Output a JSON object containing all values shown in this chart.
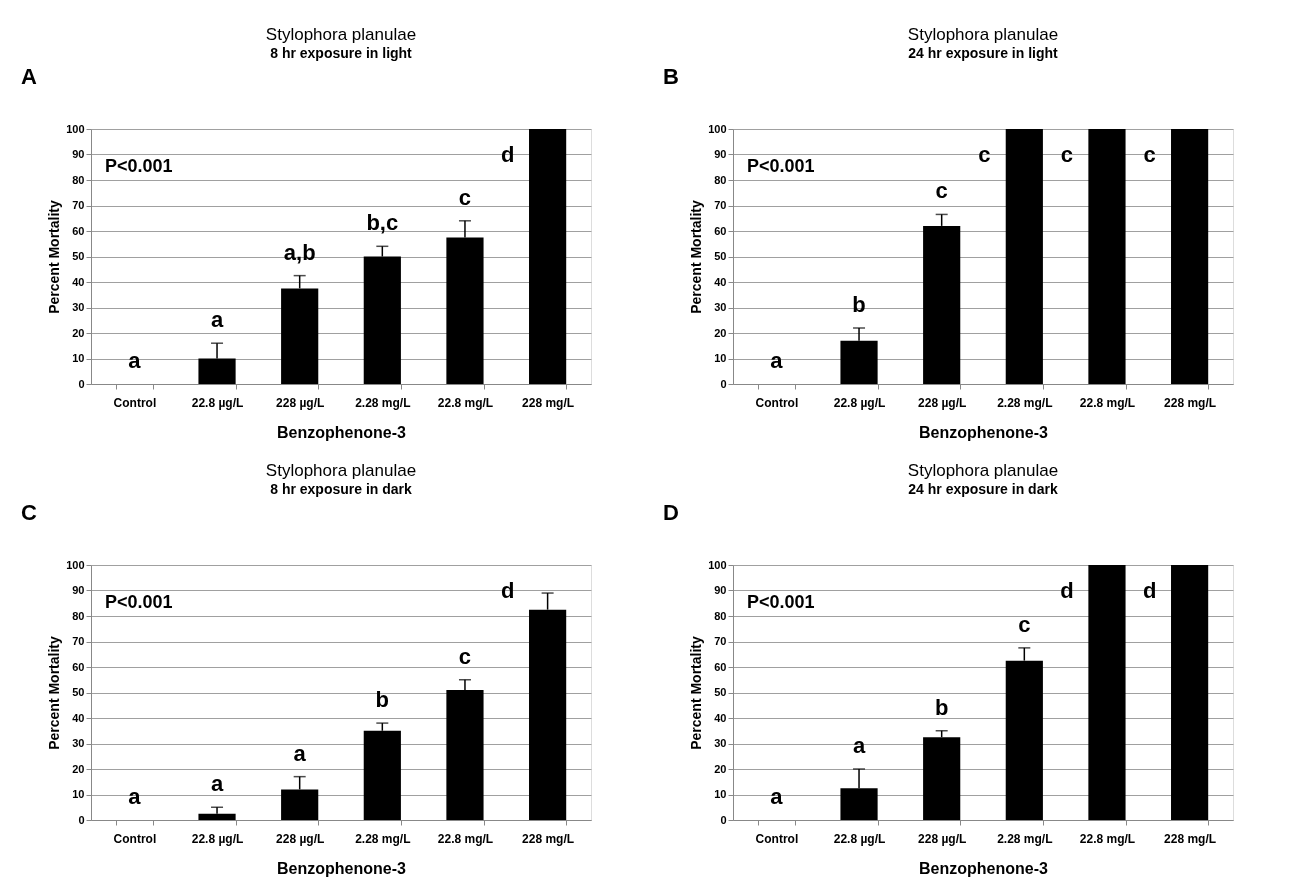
{
  "chart_data": [
    {
      "type": "bar",
      "title": "Stylophora planulae",
      "subtitle": "8 hr exposure in light",
      "xlabel": "Benzophenone-3",
      "ylabel": "Percent Mortality",
      "categories": [
        "Control",
        "22.8 µg/L",
        "228 µg/L",
        "2.28 mg/L",
        "22.8 mg/L",
        "228 mg/L"
      ],
      "values": [
        0,
        10,
        37.5,
        50,
        57.5,
        100
      ],
      "color": "#000000",
      "errors": [
        null,
        [
          10,
          16
        ],
        [
          37.5,
          42.5
        ],
        [
          50,
          54
        ],
        [
          57.5,
          64
        ],
        null
      ],
      "ylim": [
        0,
        100
      ],
      "yticks": [
        0,
        10,
        20,
        30,
        40,
        50,
        60,
        70,
        80,
        90,
        100
      ],
      "grid": "y",
      "annotations": [
        "A",
        "P<0.001",
        "a",
        "a",
        "a,b",
        "b,c",
        "c",
        "d"
      ]
    },
    {
      "type": "bar",
      "title": "Stylophora planulae",
      "subtitle": "24 hr exposure in light",
      "xlabel": "Benzophenone-3",
      "ylabel": "Percent Mortality",
      "categories": [
        "Control",
        "22.8 µg/L",
        "228 µg/L",
        "2.28 mg/L",
        "22.8 mg/L",
        "228 mg/L"
      ],
      "values": [
        0,
        17,
        62,
        100,
        100,
        100
      ],
      "color": "#000000",
      "errors": [
        null,
        [
          17,
          22
        ],
        [
          62,
          66.5
        ],
        null,
        null,
        null
      ],
      "ylim": [
        0,
        100
      ],
      "yticks": [
        0,
        10,
        20,
        30,
        40,
        50,
        60,
        70,
        80,
        90,
        100
      ],
      "grid": "y",
      "annotations": [
        "B",
        "P<0.001",
        "a",
        "b",
        "c",
        "c",
        "c",
        "c"
      ]
    },
    {
      "type": "bar",
      "title": "Stylophora planulae",
      "subtitle": "8 hr exposure in dark",
      "xlabel": "Benzophenone-3",
      "ylabel": "Percent Mortality",
      "categories": [
        "Control",
        "22.8 µg/L",
        "228 µg/L",
        "2.28 mg/L",
        "22.8 mg/L",
        "228 mg/L"
      ],
      "values": [
        0,
        2.5,
        12,
        35,
        51,
        82.5
      ],
      "color": "#000000",
      "errors": [
        null,
        [
          2.5,
          5
        ],
        [
          12,
          17
        ],
        [
          35,
          38
        ],
        [
          51,
          55
        ],
        [
          82.5,
          89
        ]
      ],
      "ylim": [
        0,
        100
      ],
      "yticks": [
        0,
        10,
        20,
        30,
        40,
        50,
        60,
        70,
        80,
        90,
        100
      ],
      "grid": "y",
      "annotations": [
        "C",
        "P<0.001",
        "a",
        "a",
        "a",
        "b",
        "c",
        "d"
      ]
    },
    {
      "type": "bar",
      "title": "Stylophora planulae",
      "subtitle": "24 hr exposure in dark",
      "xlabel": "Benzophenone-3",
      "ylabel": "Percent Mortality",
      "categories": [
        "Control",
        "22.8 µg/L",
        "228 µg/L",
        "2.28 mg/L",
        "22.8 mg/L",
        "228 mg/L"
      ],
      "values": [
        0,
        12.5,
        32.5,
        62.5,
        100,
        100
      ],
      "color": "#000000",
      "errors": [
        null,
        [
          12.5,
          20
        ],
        [
          32.5,
          35
        ],
        [
          62.5,
          67.5
        ],
        null,
        null
      ],
      "ylim": [
        0,
        100
      ],
      "yticks": [
        0,
        10,
        20,
        30,
        40,
        50,
        60,
        70,
        80,
        90,
        100
      ],
      "grid": "y",
      "annotations": [
        "D",
        "P<0.001",
        "a",
        "a",
        "b",
        "c",
        "d",
        "d"
      ]
    }
  ]
}
